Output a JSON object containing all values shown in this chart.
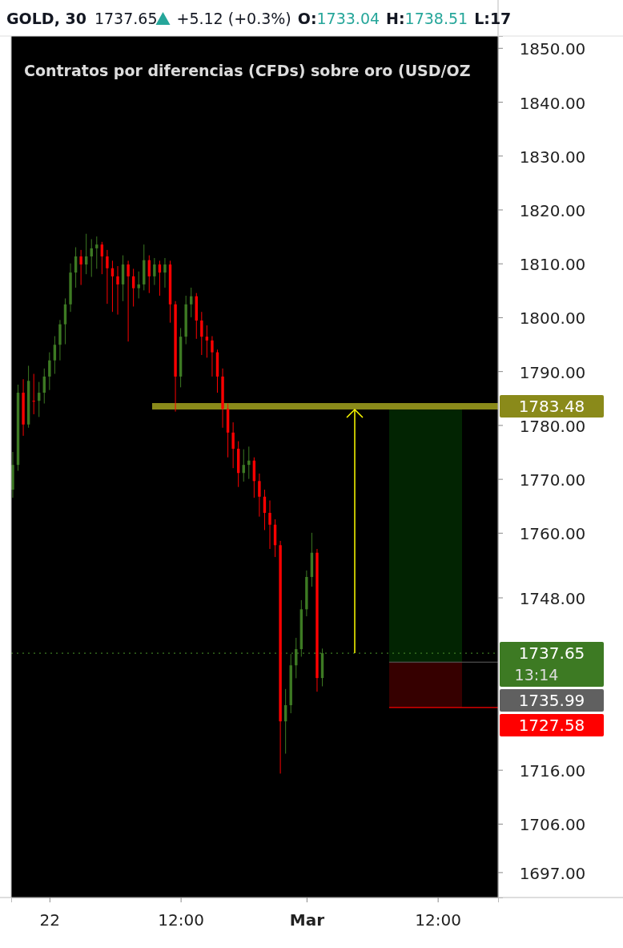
{
  "chart_data": {
    "type": "candlestick",
    "title": "GOLD, 30",
    "subtitle": "Contratos por diferencias (CFDs) sobre oro (USD/OZ",
    "annotations": [
      "1737.65",
      "+5.12 (+0.3%)",
      "O:",
      "1733.04",
      "H:",
      "1738.51",
      "L:17",
      "13:14"
    ],
    "categories": [
      null,
      null,
      null,
      null,
      null,
      null,
      null,
      "22",
      null,
      null,
      null,
      null,
      null,
      null,
      null,
      null,
      null,
      null,
      null,
      null,
      null,
      null,
      null,
      null,
      null,
      null,
      null,
      null,
      null,
      null,
      null,
      null,
      "12:00",
      null,
      null,
      null,
      null,
      null,
      null,
      null,
      null,
      null,
      null,
      null,
      null,
      null,
      null,
      null,
      null,
      null,
      null,
      null,
      null,
      null,
      null,
      null,
      "Mar",
      null,
      null,
      null,
      null,
      null,
      null,
      null,
      null,
      null,
      null,
      null,
      null,
      null,
      null,
      null,
      null,
      null,
      null,
      null,
      null,
      null,
      null,
      null,
      null,
      "12:00",
      null,
      null,
      null,
      null,
      null,
      null,
      null,
      null,
      null,
      null,
      null
    ],
    "ohlc": [
      [
        1768.0,
        1775.0,
        1766.5,
        1772.6
      ],
      [
        1772.6,
        1787.5,
        1771.5,
        1786.0
      ],
      [
        1786.0,
        1788.5,
        1778.0,
        1780.1
      ],
      [
        1780.1,
        1791.0,
        1779.5,
        1788.2
      ],
      [
        1784.5,
        1789.5,
        1782.0,
        1784.5
      ],
      [
        1784.5,
        1788.0,
        1781.5,
        1786.0
      ],
      [
        1786.0,
        1790.5,
        1784.0,
        1789.0
      ],
      [
        1789.0,
        1793.5,
        1786.5,
        1792.0
      ],
      [
        1792.0,
        1796.5,
        1789.5,
        1794.9
      ],
      [
        1794.9,
        1799.5,
        1792.0,
        1798.7
      ],
      [
        1798.7,
        1803.5,
        1795.0,
        1802.4
      ],
      [
        1802.4,
        1810.0,
        1801.0,
        1808.3
      ],
      [
        1808.3,
        1813.0,
        1805.5,
        1811.3
      ],
      [
        1811.3,
        1812.5,
        1806.0,
        1809.8
      ],
      [
        1809.8,
        1815.5,
        1808.0,
        1811.3
      ],
      [
        1811.3,
        1814.5,
        1807.5,
        1812.8
      ],
      [
        1812.8,
        1815.0,
        1809.0,
        1813.5
      ],
      [
        1813.5,
        1814.0,
        1808.0,
        1811.3
      ],
      [
        1811.3,
        1812.5,
        1802.5,
        1809.1
      ],
      [
        1809.1,
        1810.5,
        1801.0,
        1807.6
      ],
      [
        1807.6,
        1809.5,
        1800.5,
        1806.1
      ],
      [
        1806.1,
        1811.5,
        1803.0,
        1809.8
      ],
      [
        1809.8,
        1810.5,
        1795.5,
        1807.6
      ],
      [
        1807.6,
        1809.0,
        1802.0,
        1805.4
      ],
      [
        1805.4,
        1808.5,
        1803.5,
        1806.1
      ],
      [
        1806.1,
        1813.5,
        1805.0,
        1810.6
      ],
      [
        1810.6,
        1811.5,
        1804.5,
        1807.6
      ],
      [
        1807.6,
        1811.0,
        1806.0,
        1809.8
      ],
      [
        1809.8,
        1810.5,
        1804.0,
        1808.3
      ],
      [
        1808.3,
        1811.0,
        1805.5,
        1809.8
      ],
      [
        1809.8,
        1810.5,
        1799.0,
        1802.4
      ],
      [
        1802.4,
        1803.0,
        1782.5,
        1789.0
      ],
      [
        1789.0,
        1798.0,
        1787.0,
        1796.4
      ],
      [
        1796.4,
        1804.0,
        1795.0,
        1802.4
      ],
      [
        1802.4,
        1805.5,
        1800.0,
        1803.9
      ],
      [
        1803.9,
        1804.5,
        1796.0,
        1799.4
      ],
      [
        1799.4,
        1801.0,
        1793.0,
        1796.4
      ],
      [
        1796.4,
        1798.5,
        1792.5,
        1795.7
      ],
      [
        1795.7,
        1796.5,
        1789.0,
        1793.5
      ],
      [
        1793.5,
        1794.0,
        1786.0,
        1789.0
      ],
      [
        1789.0,
        1790.5,
        1779.5,
        1783.0
      ],
      [
        1783.0,
        1784.0,
        1774.0,
        1778.6
      ],
      [
        1778.6,
        1780.5,
        1772.0,
        1775.6
      ],
      [
        1775.6,
        1777.0,
        1768.5,
        1771.1
      ],
      [
        1771.1,
        1775.5,
        1769.5,
        1772.6
      ],
      [
        1772.6,
        1776.0,
        1770.0,
        1773.4
      ],
      [
        1773.4,
        1774.0,
        1766.5,
        1769.6
      ],
      [
        1769.6,
        1771.0,
        1763.0,
        1766.7
      ],
      [
        1766.7,
        1768.0,
        1760.5,
        1763.7
      ],
      [
        1763.7,
        1766.0,
        1757.0,
        1761.5
      ],
      [
        1761.5,
        1762.5,
        1755.5,
        1757.7
      ],
      [
        1757.7,
        1758.5,
        1715.3,
        1725.0
      ],
      [
        1725.0,
        1731.0,
        1719.0,
        1728.0
      ],
      [
        1728.0,
        1737.5,
        1726.5,
        1735.4
      ],
      [
        1735.4,
        1740.5,
        1733.0,
        1738.4
      ],
      [
        1738.4,
        1747.5,
        1737.0,
        1745.8
      ],
      [
        1745.8,
        1753.0,
        1744.5,
        1751.8
      ],
      [
        1751.8,
        1760.0,
        1750.0,
        1756.3
      ],
      [
        1756.3,
        1757.0,
        1730.5,
        1733.04
      ],
      [
        1733.04,
        1738.51,
        1731.5,
        1737.65
      ],
      null,
      null,
      null,
      null,
      null,
      null,
      null,
      null,
      null,
      null,
      null,
      null,
      null,
      null,
      null,
      null,
      null,
      null,
      null,
      null,
      null,
      null,
      null,
      null,
      null,
      null,
      null,
      null,
      null,
      null,
      null,
      null,
      null
    ],
    "colors": [
      "#3d7a23",
      "#3d7a23",
      "#ff0000",
      "#3d7a23",
      "#ff0000",
      "#3d7a23",
      "#3d7a23",
      "#3d7a23",
      "#3d7a23",
      "#3d7a23",
      "#3d7a23",
      "#3d7a23",
      "#3d7a23",
      "#ff0000",
      "#3d7a23",
      "#3d7a23",
      "#3d7a23",
      "#ff0000",
      "#ff0000",
      "#ff0000",
      "#ff0000",
      "#3d7a23",
      "#ff0000",
      "#ff0000",
      "#3d7a23",
      "#3d7a23",
      "#ff0000",
      "#3d7a23",
      "#ff0000",
      "#3d7a23",
      "#ff0000",
      "#ff0000",
      "#3d7a23",
      "#3d7a23",
      "#3d7a23",
      "#ff0000",
      "#ff0000",
      "#ff0000",
      "#ff0000",
      "#ff0000",
      "#ff0000",
      "#ff0000",
      "#ff0000",
      "#ff0000",
      "#3d7a23",
      "#3d7a23",
      "#ff0000",
      "#ff0000",
      "#ff0000",
      "#ff0000",
      "#ff0000",
      "#ff0000",
      "#3d7a23",
      "#3d7a23",
      "#3d7a23",
      "#3d7a23",
      "#3d7a23",
      "#3d7a23",
      "#ff0000",
      "#3d7a23",
      null,
      null,
      null,
      null,
      null,
      null,
      null,
      null,
      null,
      null,
      null,
      null,
      null,
      null,
      null,
      null,
      null,
      null,
      null,
      null,
      null,
      null,
      null,
      null,
      null,
      null,
      null,
      null,
      null,
      null,
      null,
      null,
      null
    ],
    "ylim": [
      1692.3,
      1852.2
    ],
    "yticks": [
      {
        "value": 1850,
        "label": "1850.00"
      },
      {
        "value": 1840,
        "label": "1840.00"
      },
      {
        "value": 1830,
        "label": "1830.00"
      },
      {
        "value": 1820,
        "label": "1820.00"
      },
      {
        "value": 1810,
        "label": "1810.00"
      },
      {
        "value": 1800,
        "label": "1800.00"
      },
      {
        "value": 1790,
        "label": "1790.00"
      },
      {
        "value": 1780,
        "label": "1780.00"
      },
      {
        "value": 1770,
        "label": "1770.00"
      },
      {
        "value": 1760,
        "label": "1760.00"
      },
      {
        "value": 1748,
        "label": "1748.00"
      },
      {
        "value": 1716,
        "label": "1716.00"
      },
      {
        "value": 1706,
        "label": "1706.00"
      },
      {
        "value": 1697,
        "label": "1697.00"
      }
    ],
    "ref_lines": [
      {
        "axis": "y",
        "value": 1783.48,
        "label": "1783.48",
        "color": "#8a8a1a"
      },
      {
        "axis": "y",
        "value": 1737.65,
        "label": "1737.65",
        "color": "#3d7a23",
        "line_style": "dotted"
      },
      {
        "axis": "y",
        "value": 1735.99,
        "label": "1735.99",
        "color": "#606060"
      },
      {
        "axis": "y",
        "value": 1727.58,
        "label": "1727.58",
        "color": "#ff0000"
      }
    ],
    "bands": [
      {
        "axis": "y",
        "from": 1735.99,
        "to": 1783.48,
        "color": "#022402"
      },
      {
        "axis": "y",
        "from": 1727.58,
        "to": 1735.99,
        "color": "#360000"
      }
    ],
    "grid": false
  }
}
